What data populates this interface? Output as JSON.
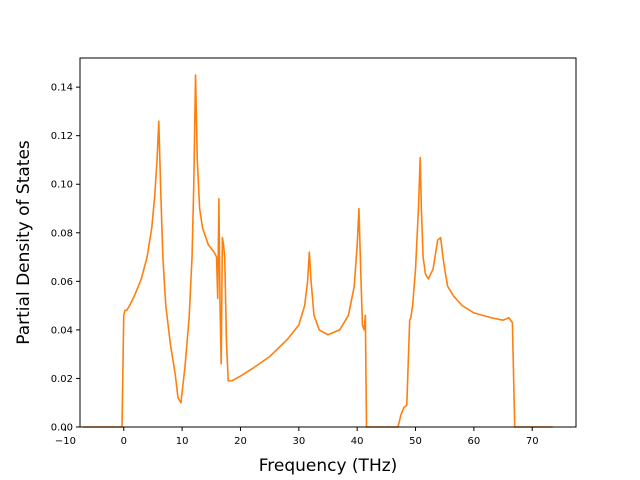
{
  "chart_data": {
    "type": "line",
    "title": "",
    "xlabel": "Frequency (THz)",
    "ylabel": "Partial Density of States",
    "xlim": [
      -7.5,
      77.5
    ],
    "ylim": [
      0.0,
      0.152
    ],
    "x_ticks": [
      -10,
      0,
      10,
      20,
      30,
      40,
      50,
      60,
      70
    ],
    "x_tick_labels": [
      "−10",
      "0",
      "10",
      "20",
      "30",
      "40",
      "50",
      "60",
      "70"
    ],
    "y_ticks": [
      0.0,
      0.02,
      0.04,
      0.06,
      0.08,
      0.1,
      0.12,
      0.14
    ],
    "y_tick_labels": [
      "0.00",
      "0.02",
      "0.04",
      "0.06",
      "0.08",
      "0.10",
      "0.12",
      "0.14"
    ],
    "grid": false,
    "legend": "none",
    "series": [
      {
        "color": "#ff7f0e",
        "x": [
          -7,
          -0.3,
          0,
          0.2,
          0.5,
          1,
          2,
          3,
          4,
          4.8,
          5.3,
          5.7,
          6.0,
          6.3,
          6.7,
          7.2,
          8,
          8.8,
          9.3,
          9.8,
          10.5,
          11.2,
          11.7,
          12.0,
          12.3,
          12.6,
          13.0,
          13.5,
          14.5,
          15.5,
          15.9,
          16.1,
          16.3,
          16.5,
          16.7,
          16.9,
          17.1,
          17.3,
          17.6,
          17.9,
          18.1,
          18.5,
          20,
          22,
          25,
          28,
          30,
          31,
          31.5,
          31.8,
          32.1,
          32.6,
          33.5,
          35,
          37,
          38.5,
          39.5,
          40.0,
          40.3,
          40.6,
          40.9,
          41.2,
          41.4,
          41.6,
          41.9,
          42.2,
          47,
          47.5,
          48,
          48.5,
          49,
          49.2,
          49.5,
          50,
          50.5,
          50.8,
          51.0,
          51.3,
          51.7,
          52.2,
          53,
          53.8,
          54.3,
          54.7,
          55.0,
          55.5,
          56.5,
          58,
          60,
          63,
          65,
          66,
          66.6,
          67.0,
          67.3,
          73.5
        ],
        "y": [
          0.0,
          0.0,
          0.046,
          0.048,
          0.048,
          0.05,
          0.055,
          0.061,
          0.07,
          0.082,
          0.095,
          0.11,
          0.126,
          0.1,
          0.07,
          0.05,
          0.034,
          0.022,
          0.012,
          0.01,
          0.025,
          0.045,
          0.07,
          0.1,
          0.145,
          0.11,
          0.09,
          0.082,
          0.075,
          0.072,
          0.07,
          0.053,
          0.094,
          0.05,
          0.026,
          0.078,
          0.075,
          0.07,
          0.035,
          0.019,
          0.019,
          0.019,
          0.021,
          0.024,
          0.029,
          0.036,
          0.042,
          0.05,
          0.06,
          0.072,
          0.06,
          0.046,
          0.04,
          0.038,
          0.04,
          0.046,
          0.058,
          0.075,
          0.09,
          0.065,
          0.042,
          0.04,
          0.046,
          0.0,
          0.0,
          0.0,
          0.0,
          0.005,
          0.008,
          0.009,
          0.044,
          0.045,
          0.05,
          0.065,
          0.09,
          0.111,
          0.09,
          0.07,
          0.063,
          0.061,
          0.065,
          0.077,
          0.078,
          0.07,
          0.065,
          0.058,
          0.054,
          0.05,
          0.047,
          0.045,
          0.044,
          0.045,
          0.043,
          0.0,
          0.0,
          0.0
        ]
      }
    ]
  }
}
